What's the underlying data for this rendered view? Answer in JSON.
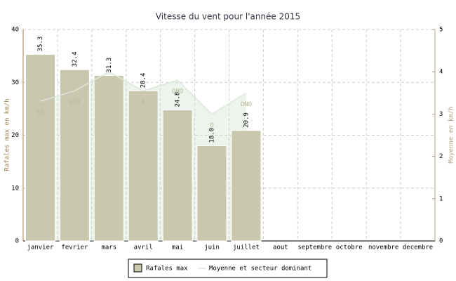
{
  "chart_data": {
    "type": "bar-line",
    "title": "Vitesse du vent pour l'année 2015",
    "ylabel": "Rafales max en km/h",
    "y2label": "Moyenne en km/h",
    "categories": [
      "janvier",
      "fevrier",
      "mars",
      "avril",
      "mai",
      "juin",
      "juillet",
      "aout",
      "septembre",
      "octobre",
      "novembre",
      "decembre"
    ],
    "series": [
      {
        "name": "Rafales max",
        "color": "#c9c7ae",
        "values": [
          35.3,
          32.4,
          31.3,
          28.4,
          24.8,
          18.0,
          20.9,
          null,
          null,
          null,
          null,
          null
        ],
        "value_labels": [
          "35.3",
          "32.4",
          "31.3",
          "28.4",
          "24.8",
          "18.0",
          "20.9",
          null,
          null,
          null,
          null,
          null
        ]
      },
      {
        "name": "Moyenne et secteur dominant",
        "color": "#c8e0c8",
        "axis": "y2",
        "values": [
          3.3,
          3.55,
          4.0,
          3.55,
          3.8,
          3.0,
          3.5,
          null,
          null,
          null,
          null,
          null
        ],
        "direction_labels": [
          "SO",
          "OSO",
          null,
          "E",
          "ONO",
          "O",
          "ONO",
          null,
          null,
          null,
          null,
          null
        ]
      }
    ],
    "ylim": [
      0,
      40
    ],
    "yticks": [
      0,
      10,
      20,
      30,
      40
    ],
    "y2lim": [
      0,
      5
    ],
    "y2ticks": [
      0,
      1,
      2,
      3,
      4,
      5
    ],
    "grid": true
  }
}
